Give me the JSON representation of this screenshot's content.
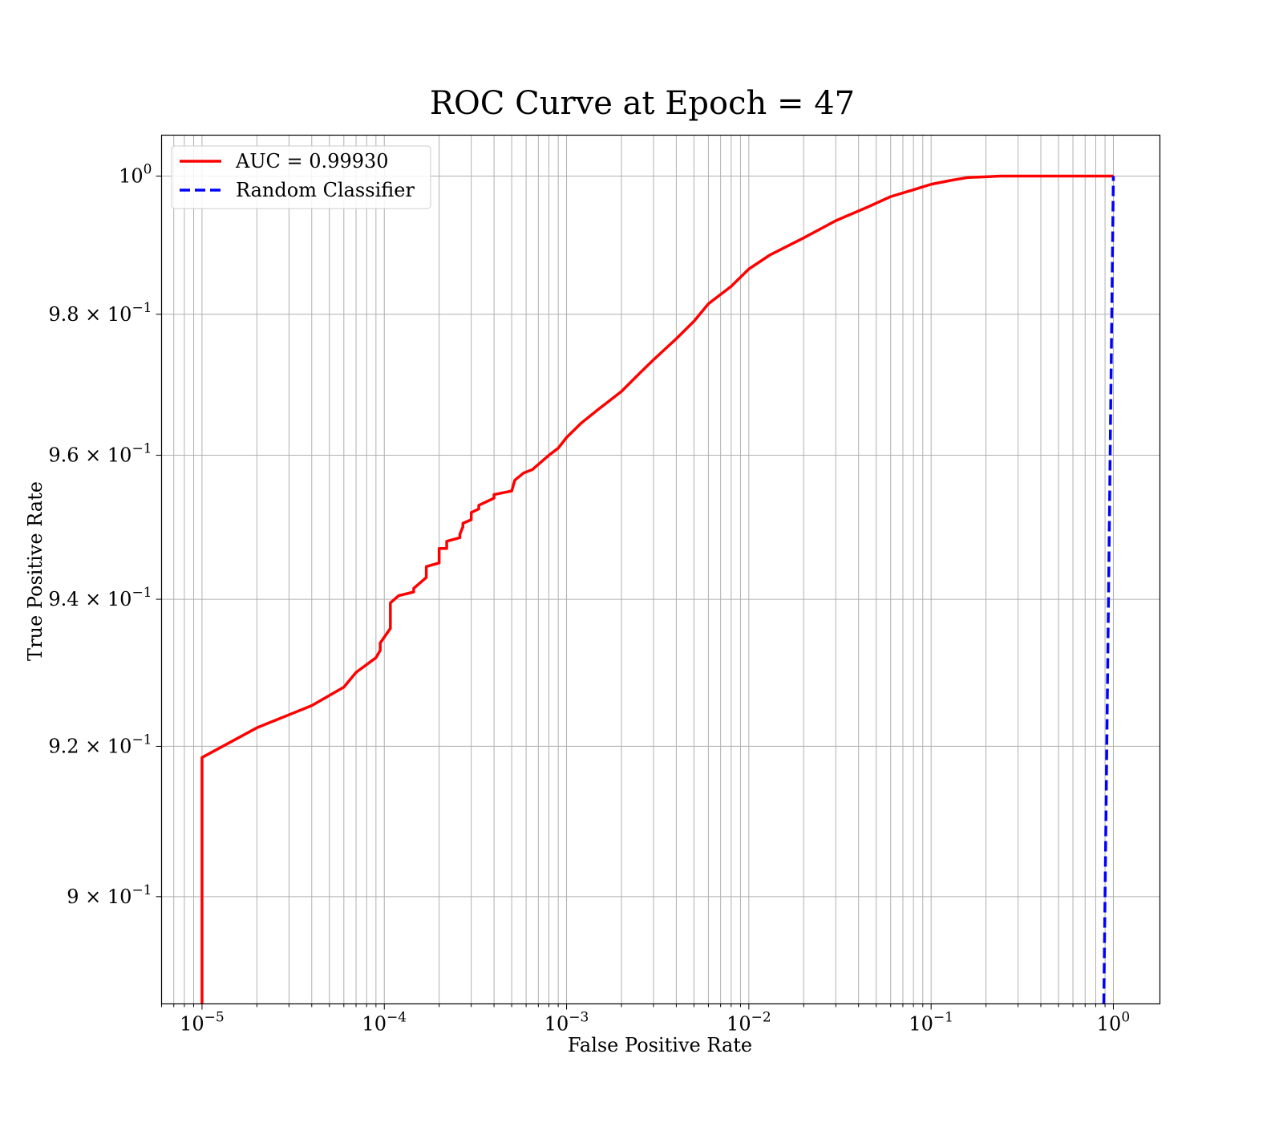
{
  "chart_data": {
    "type": "line",
    "title": "ROC Curve at Epoch = 47",
    "xlabel": "False Positive Rate",
    "ylabel": "True Positive Rate",
    "xscale": "log",
    "yscale": "log",
    "xlim": [
      6e-06,
      1.8
    ],
    "ylim": [
      0.886,
      1.006
    ],
    "grid": "both, major and minor",
    "legend_position": "top-left",
    "x_ticks": [
      {
        "value": 1e-05,
        "base": "10",
        "exp": "−5"
      },
      {
        "value": 0.0001,
        "base": "10",
        "exp": "−4"
      },
      {
        "value": 0.001,
        "base": "10",
        "exp": "−3"
      },
      {
        "value": 0.01,
        "base": "10",
        "exp": "−2"
      },
      {
        "value": 0.1,
        "base": "10",
        "exp": "−1"
      },
      {
        "value": 1,
        "base": "10",
        "exp": "0"
      }
    ],
    "y_ticks": [
      {
        "value": 0.9,
        "base": "9 × 10",
        "exp": "−1"
      },
      {
        "value": 0.92,
        "base": "9.2 × 10",
        "exp": "−1"
      },
      {
        "value": 0.94,
        "base": "9.4 × 10",
        "exp": "−1"
      },
      {
        "value": 0.96,
        "base": "9.6 × 10",
        "exp": "−1"
      },
      {
        "value": 0.98,
        "base": "9.8 × 10",
        "exp": "−1"
      },
      {
        "value": 1.0,
        "base": "10",
        "exp": "0"
      }
    ],
    "series": [
      {
        "name": "AUC = 0.99930",
        "color": "#ff0000",
        "style": "solid",
        "x": [
          1e-05,
          1e-05,
          1e-05,
          2e-05,
          4e-05,
          6e-05,
          7e-05,
          9e-05,
          9.5e-05,
          9.5e-05,
          0.000108,
          0.000108,
          0.00012,
          0.000145,
          0.000145,
          0.00017,
          0.00017,
          0.0002,
          0.0002,
          0.00022,
          0.00022,
          0.00026,
          0.00026,
          0.00027,
          0.00027,
          0.0003,
          0.0003,
          0.00033,
          0.00033,
          0.0004,
          0.0004,
          0.0005,
          0.00052,
          0.00058,
          0.00065,
          0.0008,
          0.0009,
          0.001,
          0.0012,
          0.0015,
          0.002,
          0.0025,
          0.003,
          0.004,
          0.005,
          0.006,
          0.008,
          0.01,
          0.013,
          0.02,
          0.03,
          0.045,
          0.06,
          0.08,
          0.1,
          0.13,
          0.16,
          0.2,
          0.24,
          0.5,
          1.0
        ],
        "y": [
          0.886,
          0.905,
          0.9185,
          0.9225,
          0.9255,
          0.928,
          0.93,
          0.932,
          0.933,
          0.934,
          0.936,
          0.9395,
          0.9405,
          0.941,
          0.9415,
          0.943,
          0.9445,
          0.945,
          0.947,
          0.947,
          0.948,
          0.9485,
          0.949,
          0.95,
          0.9505,
          0.951,
          0.952,
          0.9525,
          0.953,
          0.954,
          0.9545,
          0.955,
          0.9565,
          0.9575,
          0.958,
          0.96,
          0.961,
          0.9625,
          0.9645,
          0.9665,
          0.969,
          0.9715,
          0.9735,
          0.9765,
          0.979,
          0.9815,
          0.984,
          0.9865,
          0.9885,
          0.991,
          0.9935,
          0.9955,
          0.997,
          0.998,
          0.9988,
          0.9994,
          0.9998,
          0.9999,
          1.0,
          1.0,
          1.0
        ]
      },
      {
        "name": "Random Classifier",
        "color": "#0000ff",
        "style": "dashed",
        "x": [
          0.886,
          1.0
        ],
        "y": [
          0.886,
          1.0
        ]
      }
    ]
  }
}
